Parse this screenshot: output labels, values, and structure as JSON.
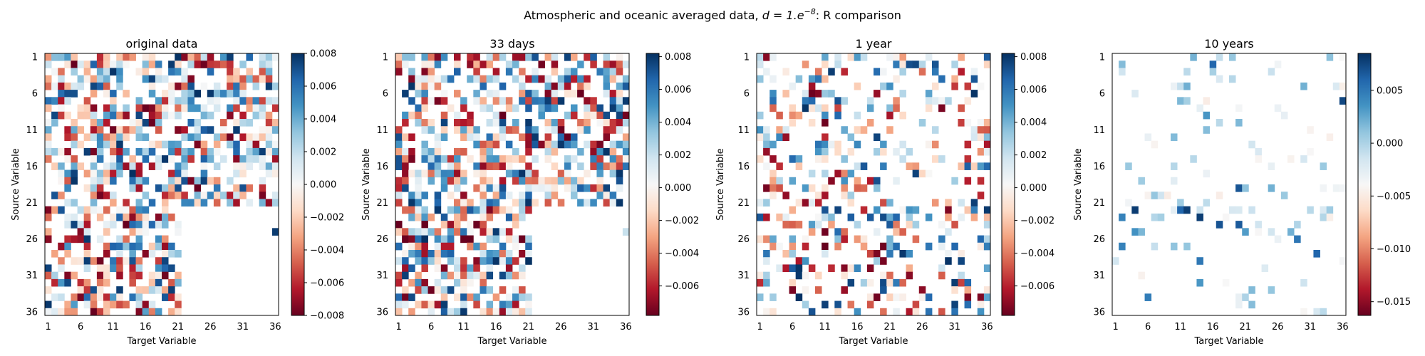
{
  "figure": {
    "suptitle_prefix": "Atmospheric and oceanic averaged data, ",
    "suptitle_math": "d = 1.e",
    "suptitle_exp": "−8",
    "suptitle_suffix": ": R comparison"
  },
  "chart_data": [
    {
      "type": "heatmap",
      "title": "original data",
      "xlabel": "Target Variable",
      "ylabel": "Source Variable",
      "x_ticks": [
        "1",
        "6",
        "11",
        "16",
        "21",
        "26",
        "31",
        "36"
      ],
      "y_ticks": [
        "1",
        "6",
        "11",
        "16",
        "21",
        "26",
        "31",
        "36"
      ],
      "matrix_size": 36,
      "colormap": "RdBu",
      "clim": [
        -0.008,
        0.008
      ],
      "colorbar_ticks": [
        "0.008",
        "0.006",
        "0.004",
        "0.002",
        "0.000",
        "−0.002",
        "−0.004",
        "−0.006",
        "−0.008"
      ],
      "colorbar_values": [
        0.008,
        0.006,
        0.004,
        0.002,
        0.0,
        -0.002,
        -0.004,
        -0.006,
        -0.008
      ]
    },
    {
      "type": "heatmap",
      "title": "33 days",
      "xlabel": "Target Variable",
      "ylabel": "Source Variable",
      "x_ticks": [
        "1",
        "6",
        "11",
        "16",
        "21",
        "26",
        "31",
        "36"
      ],
      "y_ticks": [
        "1",
        "6",
        "11",
        "16",
        "21",
        "26",
        "31",
        "36"
      ],
      "matrix_size": 36,
      "colormap": "RdBu",
      "clim": [
        -0.0078,
        0.0082
      ],
      "colorbar_ticks": [
        "0.008",
        "0.006",
        "0.004",
        "0.002",
        "0.000",
        "−0.002",
        "−0.004",
        "−0.006"
      ],
      "colorbar_values": [
        0.008,
        0.006,
        0.004,
        0.002,
        0.0,
        -0.002,
        -0.004,
        -0.006
      ]
    },
    {
      "type": "heatmap",
      "title": "1 year",
      "xlabel": "Target Variable",
      "ylabel": "Source Variable",
      "x_ticks": [
        "1",
        "6",
        "11",
        "16",
        "21",
        "26",
        "31",
        "36"
      ],
      "y_ticks": [
        "1",
        "6",
        "11",
        "16",
        "21",
        "26",
        "31",
        "36"
      ],
      "matrix_size": 36,
      "colormap": "RdBu",
      "clim": [
        -0.0078,
        0.0082
      ],
      "colorbar_ticks": [
        "0.008",
        "0.006",
        "0.004",
        "0.002",
        "0.000",
        "−0.002",
        "−0.004",
        "−0.006"
      ],
      "colorbar_values": [
        0.008,
        0.006,
        0.004,
        0.002,
        0.0,
        -0.002,
        -0.004,
        -0.006
      ]
    },
    {
      "type": "heatmap",
      "title": "10 years",
      "xlabel": "Target Variable",
      "ylabel": "Source Variable",
      "x_ticks": [
        "1",
        "6",
        "11",
        "16",
        "21",
        "26",
        "31",
        "36"
      ],
      "y_ticks": [
        "1",
        "6",
        "11",
        "16",
        "21",
        "26",
        "31",
        "36"
      ],
      "matrix_size": 36,
      "colormap": "RdBu",
      "clim": [
        -0.0163,
        0.0085
      ],
      "colorbar_ticks": [
        "0.005",
        "0.000",
        "−0.005",
        "−0.010",
        "−0.015"
      ],
      "colorbar_values": [
        0.005,
        0.0,
        -0.005,
        -0.01,
        -0.015
      ]
    }
  ]
}
